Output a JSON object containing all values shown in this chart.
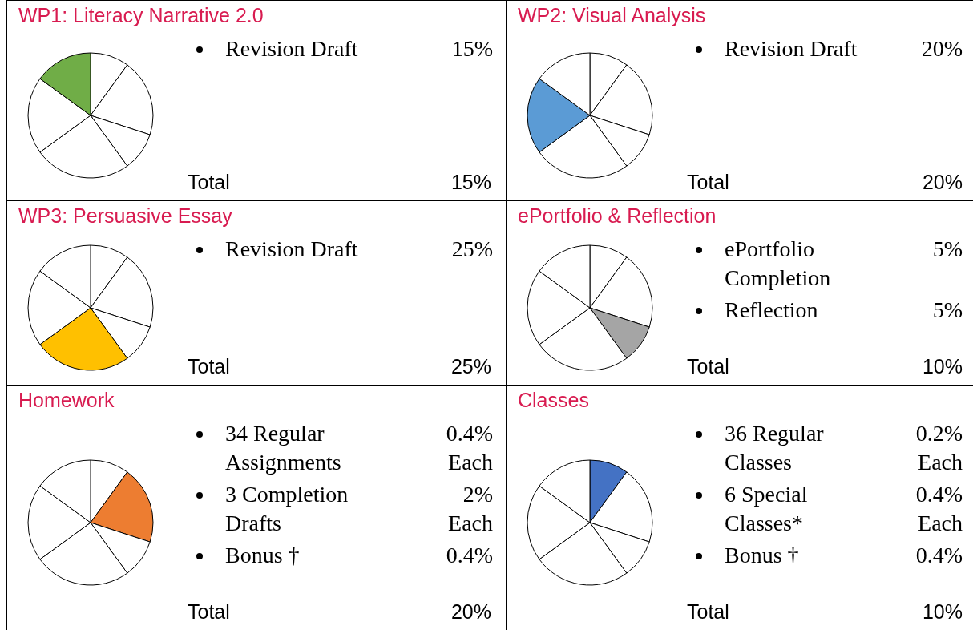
{
  "chart_data": [
    {
      "type": "pie",
      "title": "WP1: Literacy Narrative 2.0",
      "categories": [
        null,
        null,
        null,
        null,
        null,
        null
      ],
      "values": [
        10,
        20,
        10,
        25,
        20,
        15
      ],
      "colors": [
        "#ffffff",
        "#ffffff",
        "#ffffff",
        "#ffffff",
        "#ffffff",
        "#70ad47"
      ],
      "annotations": [
        "Revision Draft",
        "15%",
        "Total",
        "15%"
      ]
    },
    {
      "type": "pie",
      "title": "WP2: Visual Analysis",
      "categories": [
        null,
        null,
        null,
        null,
        null,
        null
      ],
      "values": [
        10,
        20,
        10,
        25,
        20,
        15
      ],
      "colors": [
        "#ffffff",
        "#ffffff",
        "#ffffff",
        "#ffffff",
        "#5b9bd5",
        "#ffffff"
      ],
      "annotations": [
        "Revision Draft",
        "20%",
        "Total",
        "20%"
      ]
    },
    {
      "type": "pie",
      "title": "WP3: Persuasive Essay",
      "categories": [
        null,
        null,
        null,
        null,
        null,
        null
      ],
      "values": [
        10,
        20,
        10,
        25,
        20,
        15
      ],
      "colors": [
        "#ffffff",
        "#ffffff",
        "#ffffff",
        "#ffc000",
        "#ffffff",
        "#ffffff"
      ],
      "annotations": [
        "Revision Draft",
        "25%",
        "Total",
        "25%"
      ]
    },
    {
      "type": "pie",
      "title": "ePortfolio & Reflection",
      "categories": [
        null,
        null,
        null,
        null,
        null,
        null
      ],
      "values": [
        10,
        20,
        10,
        25,
        20,
        15
      ],
      "colors": [
        "#ffffff",
        "#ffffff",
        "#a5a5a5",
        "#ffffff",
        "#ffffff",
        "#ffffff"
      ],
      "annotations": [
        "ePortfolio Completion",
        "5%",
        "Reflection",
        "5%",
        "Total",
        "10%"
      ]
    },
    {
      "type": "pie",
      "title": "Homework",
      "categories": [
        null,
        null,
        null,
        null,
        null,
        null
      ],
      "values": [
        10,
        20,
        10,
        25,
        20,
        15
      ],
      "colors": [
        "#ffffff",
        "#ed7d31",
        "#ffffff",
        "#ffffff",
        "#ffffff",
        "#ffffff"
      ],
      "annotations": [
        "34 Regular Assignments",
        "0.4% Each",
        "3 Completion Drafts",
        "2% Each",
        "Bonus †",
        "0.4%",
        "Total",
        "20%"
      ]
    },
    {
      "type": "pie",
      "title": "Classes",
      "categories": [
        null,
        null,
        null,
        null,
        null,
        null
      ],
      "values": [
        10,
        20,
        10,
        25,
        20,
        15
      ],
      "colors": [
        "#4472c4",
        "#ffffff",
        "#ffffff",
        "#ffffff",
        "#ffffff",
        "#ffffff"
      ],
      "annotations": [
        "36 Regular Classes",
        "0.2% Each",
        "6 Special Classes*",
        "0.4% Each",
        "Bonus †",
        "0.4%",
        "Total",
        "10%"
      ]
    }
  ]
}
